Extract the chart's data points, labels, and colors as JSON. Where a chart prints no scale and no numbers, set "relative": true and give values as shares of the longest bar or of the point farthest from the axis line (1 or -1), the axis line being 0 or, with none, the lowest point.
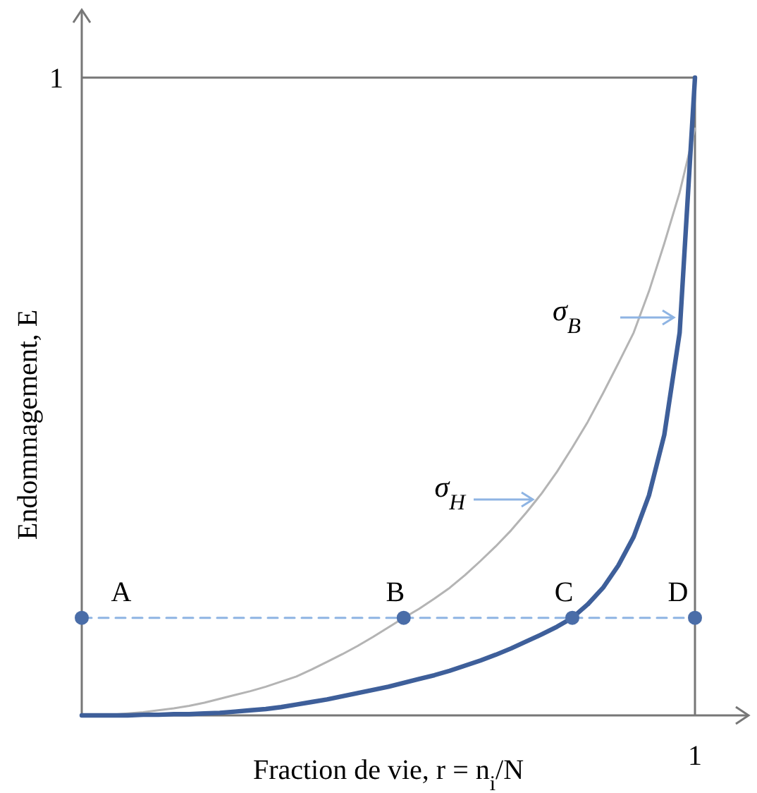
{
  "chart_data": {
    "type": "line",
    "xlabel": "Fraction de vie, r = n$_{i}$/N",
    "ylabel": "Endommagement, E",
    "relative": true,
    "categories": [
      null,
      null,
      null,
      null,
      null,
      null,
      null,
      null,
      null,
      null,
      null,
      null,
      null,
      null,
      null,
      null,
      null,
      null,
      null,
      null,
      null,
      null,
      null,
      null,
      null,
      null,
      null,
      null,
      null,
      null,
      null,
      null,
      null,
      null,
      null,
      null,
      null,
      null,
      null,
      null,
      null
    ],
    "series": [
      {
        "color": "#b4b4b4",
        "marker": "none",
        "line_style": "solid",
        "values": [
          0,
          0.0005,
          0.001,
          0.003,
          0.005,
          0.008,
          0.011,
          0.015,
          0.02,
          0.026,
          0.032,
          0.038,
          0.045,
          0.053,
          0.061,
          0.072,
          0.084,
          0.096,
          0.109,
          0.123,
          0.138,
          0.153,
          0.167,
          0.183,
          0.2,
          0.22,
          0.242,
          0.265,
          0.29,
          0.318,
          0.348,
          0.382,
          0.42,
          0.46,
          0.505,
          0.552,
          0.6,
          0.665,
          0.74,
          0.82,
          0.92
        ]
      },
      {
        "color": "#3e5f9a",
        "marker": "none",
        "line_style": "solid",
        "values": [
          0,
          0,
          0,
          0,
          0.001,
          0.001,
          0.002,
          0.002,
          0.003,
          0.004,
          0.006,
          0.008,
          0.01,
          0.013,
          0.017,
          0.021,
          0.025,
          0.03,
          0.035,
          0.04,
          0.045,
          0.051,
          0.057,
          0.063,
          0.07,
          0.078,
          0.086,
          0.095,
          0.105,
          0.116,
          0.127,
          0.139,
          0.153,
          0.174,
          0.2,
          0.235,
          0.28,
          0.345,
          0.44,
          0.6,
          1
        ]
      },
      {
        "color": "#8eb4e3",
        "marker": "none",
        "line_style": "dashed",
        "values": [
          0.153,
          0.153,
          0.153,
          0.153,
          0.153,
          0.153,
          0.153,
          0.153,
          0.153,
          0.153,
          0.153,
          0.153,
          0.153,
          0.153,
          0.153,
          0.153,
          0.153,
          0.153,
          0.153,
          0.153,
          0.153,
          0.153,
          0.153,
          0.153,
          0.153,
          0.153,
          0.153,
          0.153,
          0.153,
          0.153,
          0.153,
          0.153,
          0.153,
          0.153,
          0.153,
          0.153,
          0.153,
          0.153,
          0.153,
          0.153,
          0.153
        ]
      }
    ],
    "annotations": [
      "1",
      "σ$_{B}$",
      "σ$_{H}$",
      {
        "text": "A",
        "y": 0.153
      },
      {
        "text": "B",
        "y": 0.153
      },
      {
        "text": "C",
        "y": 0.153
      },
      {
        "text": "D",
        "y": 0.153
      },
      "1"
    ]
  }
}
